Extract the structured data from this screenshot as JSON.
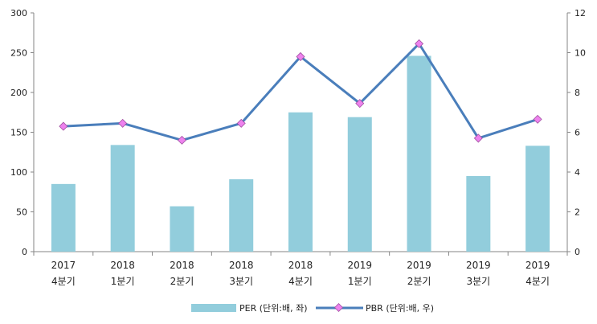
{
  "chart_data": {
    "type": "bar+line",
    "categories": [
      [
        "2017",
        "4분기"
      ],
      [
        "2018",
        "1분기"
      ],
      [
        "2018",
        "2분기"
      ],
      [
        "2018",
        "3분기"
      ],
      [
        "2018",
        "4분기"
      ],
      [
        "2019",
        "1분기"
      ],
      [
        "2019",
        "2분기"
      ],
      [
        "2019",
        "3분기"
      ],
      [
        "2019",
        "4분기"
      ]
    ],
    "series": [
      {
        "name": "PER (단위:배, 좌)",
        "type": "bar",
        "axis": "left",
        "color": "#92CDDC",
        "values": [
          85,
          134,
          57,
          91,
          175,
          169,
          246,
          95,
          133
        ]
      },
      {
        "name": "PBR (단위:배, 우)",
        "type": "line",
        "axis": "right",
        "color": "#4A7EBB",
        "marker_color": "#EE82EE",
        "values": [
          6.3,
          6.45,
          5.6,
          6.45,
          9.8,
          7.45,
          10.45,
          5.7,
          6.65
        ]
      }
    ],
    "y_left": {
      "min": 0,
      "max": 300,
      "ticks": [
        0,
        50,
        100,
        150,
        200,
        250,
        300
      ]
    },
    "y_right": {
      "min": 0,
      "max": 12,
      "ticks": [
        0,
        2,
        4,
        6,
        8,
        10,
        12
      ]
    },
    "grid": false,
    "legend_position": "bottom"
  }
}
